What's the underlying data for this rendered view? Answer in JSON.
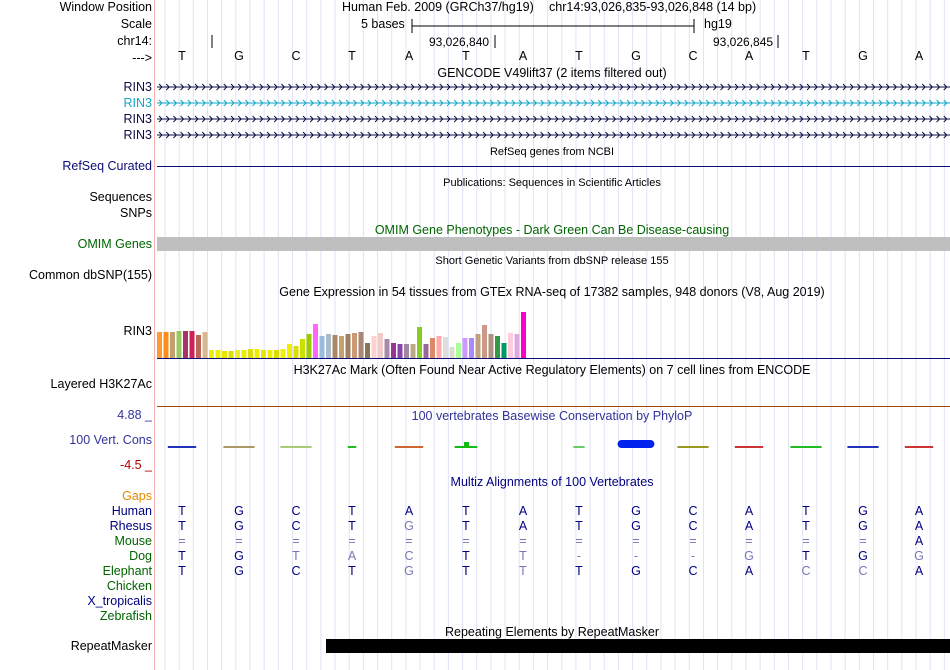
{
  "labels": {
    "window_position": "Window Position",
    "scale": "Scale",
    "chrom": "chr14:",
    "strand": "--->",
    "gencode_tracks": [
      "RIN3",
      "RIN3",
      "RIN3",
      "RIN3"
    ],
    "refseq": "RefSeq Curated",
    "sequences": "Sequences",
    "snps": "SNPs",
    "omim": "OMIM Genes",
    "common_snp": "Common dbSNP(155)",
    "gtex": "RIN3",
    "h3k27ac": "Layered H3K27Ac",
    "cons_max": "4.88 _",
    "cons_name": "100 Vert. Cons",
    "cons_min": "-4.5 _",
    "gaps": "Gaps",
    "species": [
      "Human",
      "Rhesus",
      "Mouse",
      "Dog",
      "Elephant",
      "Chicken",
      "X_tropicalis",
      "Zebrafish"
    ],
    "repeatmasker": "RepeatMasker"
  },
  "header": {
    "assembly": "Human Feb. 2009 (GRCh37/hg19)",
    "position": "chr14:93,026,835-93,026,848 (14 bp)",
    "scale_text": "5 bases",
    "db": "hg19",
    "coord1": "93,026,840",
    "coord2": "93,026,845"
  },
  "bases": [
    "T",
    "G",
    "C",
    "T",
    "A",
    "T",
    "A",
    "T",
    "G",
    "C",
    "A",
    "T",
    "G",
    "A"
  ],
  "track_titles": {
    "gencode": "GENCODE V49lift37 (2 items filtered out)",
    "refseq": "RefSeq genes from NCBI",
    "publications": "Publications: Sequences in Scientific Articles",
    "omim": "OMIM Gene Phenotypes - Dark Green Can Be Disease-causing",
    "dbsnp": "Short Genetic Variants from dbSNP release 155",
    "gtex": "Gene Expression in 54 tissues from GTEx RNA-seq of 17382 samples, 948 donors (V8, Aug 2019)",
    "h3k27ac": "H3K27Ac Mark (Often Found Near Active Regulatory Elements) on 7 cell lines from ENCODE",
    "phylop": "100 vertebrates Basewise Conservation by PhyloP",
    "multiz": "Multiz Alignments of 100 Vertebrates",
    "repeatmasker": "Repeating Elements by RepeatMasker"
  },
  "alignment": {
    "Human": [
      "T",
      "G",
      "C",
      "T",
      "A",
      "T",
      "A",
      "T",
      "G",
      "C",
      "A",
      "T",
      "G",
      "A"
    ],
    "Rhesus": [
      "T",
      "G",
      "C",
      "T",
      "G",
      "T",
      "A",
      "T",
      "G",
      "C",
      "A",
      "T",
      "G",
      "A"
    ],
    "Mouse": [
      "=",
      "=",
      "=",
      "=",
      "=",
      "=",
      "=",
      "=",
      "=",
      "=",
      "=",
      "=",
      "=",
      "A"
    ],
    "Dog": [
      "T",
      "G",
      "T",
      "A",
      "C",
      "T",
      "T",
      "-",
      "-",
      "-",
      "G",
      "T",
      "G",
      "G"
    ],
    "Elephant": [
      "T",
      "G",
      "C",
      "T",
      "G",
      "T",
      "T",
      "T",
      "G",
      "C",
      "A",
      "C",
      "C",
      "A"
    ]
  },
  "alignment_style": {
    "Rhesus": [
      "d",
      "d",
      "d",
      "d",
      "l",
      "d",
      "d",
      "d",
      "d",
      "d",
      "d",
      "d",
      "d",
      "d"
    ],
    "Mouse": [
      "l",
      "l",
      "l",
      "l",
      "l",
      "l",
      "l",
      "l",
      "l",
      "l",
      "l",
      "l",
      "l",
      "d"
    ],
    "Dog": [
      "d",
      "d",
      "l",
      "l",
      "l",
      "d",
      "l",
      "l",
      "l",
      "l",
      "l",
      "d",
      "d",
      "l"
    ],
    "Elephant": [
      "d",
      "d",
      "d",
      "d",
      "l",
      "d",
      "l",
      "d",
      "d",
      "d",
      "d",
      "l",
      "l",
      "d"
    ]
  },
  "gtex_values": [
    0.95,
    0.95,
    0.95,
    1.0,
    1.0,
    1.0,
    0.85,
    0.95,
    0.28,
    0.3,
    0.25,
    0.25,
    0.28,
    0.3,
    0.32,
    0.35,
    0.3,
    0.3,
    0.3,
    0.35,
    0.5,
    0.45,
    0.7,
    0.9,
    1.25,
    0.82,
    0.88,
    0.85,
    0.82,
    0.88,
    0.92,
    0.95,
    0.55,
    0.82,
    0.92,
    0.72,
    0.55,
    0.5,
    0.5,
    0.5,
    1.15,
    0.5,
    0.75,
    0.82,
    0.78,
    0.4,
    0.55,
    0.75,
    0.75,
    0.9,
    1.22,
    0.9,
    0.82,
    0.55,
    0.92,
    0.9,
    1.7
  ],
  "gtex_colors": [
    "#ff9a33",
    "#ff8c1a",
    "#c0a070",
    "#9cc760",
    "#aa3366",
    "#cc2255",
    "#bb6655",
    "#d8b890",
    "#eeee00",
    "#ee0",
    "#e6e600",
    "#dddd00",
    "#eeee22",
    "#eeee00",
    "#dddd11",
    "#eeee00",
    "#e6e600",
    "#eeee00",
    "#dddd00",
    "#eeee11",
    "#eeee00",
    "#dddd00",
    "#cce000",
    "#99cc00",
    "#ff66ff",
    "#99bbdd",
    "#aabbcc",
    "#aa8866",
    "#c8a070",
    "#a08060",
    "#cc9977",
    "#aa8877",
    "#887755",
    "#ffd0d0",
    "#eecccc",
    "#aa88aa",
    "#993399",
    "#8844aa",
    "#a087a0",
    "#bbaa88",
    "#88cc22",
    "#996699",
    "#dd8866",
    "#ffaaaa",
    "#dddddd",
    "#ddddcc",
    "#aaff99",
    "#cc99ff",
    "#aa88ff",
    "#c0a080",
    "#cc9988",
    "#b09080",
    "#339944",
    "#009966",
    "#ffccdd",
    "#ddaadd",
    "#ff00cc"
  ],
  "phylop": [
    {
      "c": "#2233bb",
      "w": 0.5,
      "a": 0
    },
    {
      "c": "#aa9966",
      "w": 0.55,
      "a": 0
    },
    {
      "c": "#aacc77",
      "w": 0.55,
      "a": 0
    },
    {
      "c": "#22bb22",
      "w": 0.15,
      "a": 0
    },
    {
      "c": "#cc6633",
      "w": 0.5,
      "a": 0
    },
    {
      "c": "#11bb11",
      "w": 0.4,
      "a": 1
    },
    {
      "c": "#111111",
      "w": 0,
      "a": 0
    },
    {
      "c": "#66cc66",
      "w": 0.2,
      "a": 0
    },
    {
      "c": "#0022ee",
      "w": 0.65,
      "a": 2
    },
    {
      "c": "#999922",
      "w": 0.55,
      "a": 3
    },
    {
      "c": "#cc3333",
      "w": 0.5,
      "a": 0
    },
    {
      "c": "#22bb22",
      "w": 0.55,
      "a": 4
    },
    {
      "c": "#2233bb",
      "w": 0.55,
      "a": 5
    },
    {
      "c": "#cc3333",
      "w": 0.5,
      "a": 0
    }
  ],
  "colors": {
    "gencode_dark": "#0d0f44",
    "gencode_teal": "#12a7c6",
    "refseq": "#0c0c78",
    "omim_gray": "#bfbfbf",
    "h3k27ac": "#a34a00",
    "phylop_title": "#333399",
    "maf_green": "#006400",
    "gaps": "#e08a00",
    "maf_dark": "#000080",
    "maf_light": "#7777b7"
  }
}
